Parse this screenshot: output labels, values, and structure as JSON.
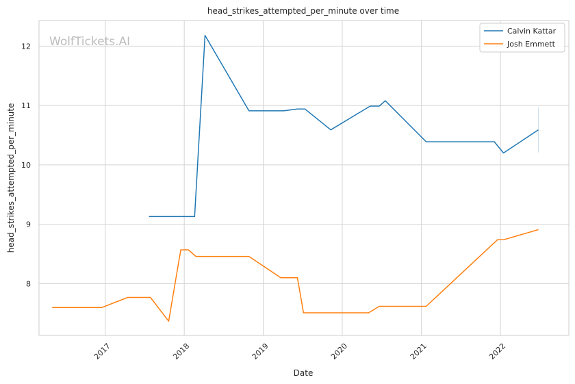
{
  "watermark": "WolfTickets.AI",
  "chart_data": {
    "type": "line",
    "title": "head_strikes_attempted_per_minute over time",
    "xlabel": "Date",
    "ylabel": "head_strikes_attempted_per_minute",
    "x_axis": "date",
    "xlim": [
      "2016-03-01",
      "2022-11-13"
    ],
    "ylim": [
      7.13,
      12.43
    ],
    "x_ticks": [
      "2017",
      "2018",
      "2019",
      "2020",
      "2021",
      "2022"
    ],
    "y_ticks": [
      8,
      9,
      10,
      11,
      12
    ],
    "grid": true,
    "legend_position": "top-right",
    "series": [
      {
        "name": "Calvin Kattar",
        "color": "#1f77b4",
        "points": [
          [
            "2017-07-22",
            9.13
          ],
          [
            "2018-02-18",
            9.13
          ],
          [
            "2018-04-07",
            12.18
          ],
          [
            "2018-10-27",
            10.91
          ],
          [
            "2019-04-06",
            10.91
          ],
          [
            "2019-06-08",
            10.94
          ],
          [
            "2019-07-13",
            10.94
          ],
          [
            "2019-11-09",
            10.59
          ],
          [
            "2020-05-09",
            10.99
          ],
          [
            "2020-06-20",
            10.99
          ],
          [
            "2020-07-18",
            11.08
          ],
          [
            "2021-01-23",
            10.39
          ],
          [
            "2021-12-04",
            10.39
          ],
          [
            "2022-01-15",
            10.2
          ],
          [
            "2022-06-25",
            10.59
          ]
        ]
      },
      {
        "name": "Josh Emmett",
        "color": "#ff7f0e",
        "points": [
          [
            "2016-05-01",
            7.6
          ],
          [
            "2016-12-17",
            7.6
          ],
          [
            "2017-04-15",
            7.77
          ],
          [
            "2017-07-29",
            7.77
          ],
          [
            "2017-10-21",
            7.37
          ],
          [
            "2017-12-16",
            8.57
          ],
          [
            "2018-01-20",
            8.57
          ],
          [
            "2018-02-24",
            8.46
          ],
          [
            "2018-10-27",
            8.46
          ],
          [
            "2019-03-23",
            8.1
          ],
          [
            "2019-06-08",
            8.1
          ],
          [
            "2019-07-06",
            7.51
          ],
          [
            "2020-05-02",
            7.51
          ],
          [
            "2020-06-20",
            7.62
          ],
          [
            "2021-01-23",
            7.62
          ],
          [
            "2021-12-18",
            8.74
          ],
          [
            "2022-01-15",
            8.74
          ],
          [
            "2022-06-25",
            8.91
          ]
        ]
      }
    ]
  }
}
